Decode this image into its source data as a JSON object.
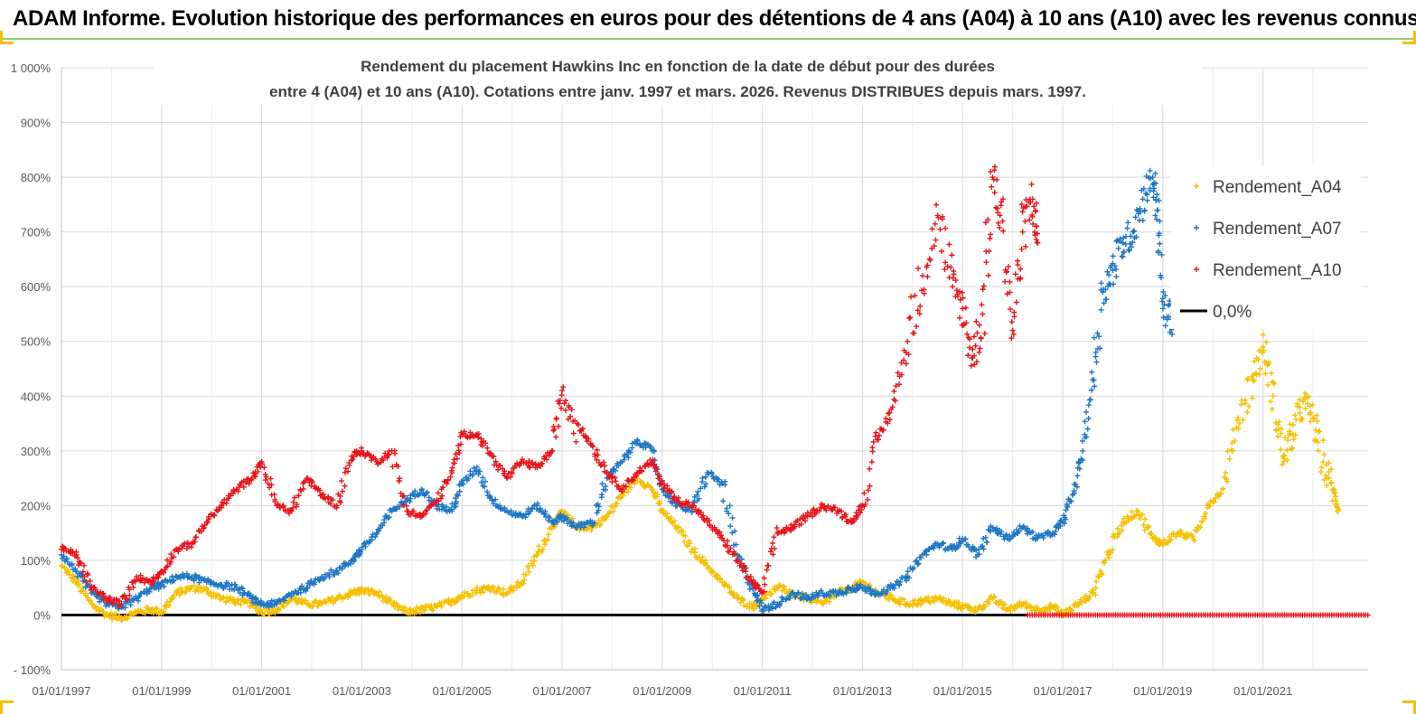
{
  "banner": {
    "title": "ADAM Informe. Evolution historique des performances en euros pour des détentions de 4 ans (A04) à 10 ans (A10) avec les revenus connus distribués"
  },
  "chart_data": {
    "type": "scatter",
    "title_line1": "Rendement du placement Hawkins Inc en fonction de la date de début pour des durées",
    "title_line2": "entre 4 (A04) et 10 ans (A10). Cotations entre janv. 1997 et mars. 2026. Revenus DISTRIBUES depuis mars. 1997.",
    "y_ticks": [
      "1 000%",
      "900%",
      "800%",
      "700%",
      "600%",
      "500%",
      "400%",
      "300%",
      "200%",
      "100%",
      "0%",
      "- 100%"
    ],
    "ylim": [
      -100,
      1000
    ],
    "x_ticks": [
      "01/01/1997",
      "01/01/1999",
      "01/01/2001",
      "01/01/2003",
      "01/01/2005",
      "01/01/2007",
      "01/01/2009",
      "01/01/2011",
      "01/01/2013",
      "01/01/2015",
      "01/01/2017",
      "01/01/2019",
      "01/01/2021"
    ],
    "xlim": [
      1997.0,
      2023.1
    ],
    "grid": true,
    "legend_position": "top-right",
    "colors": {
      "A04": "#f5c000",
      "A07": "#1f77c4",
      "A10": "#e8141b",
      "zero": "#000000"
    },
    "series": [
      {
        "name": "Rendement_A04",
        "key": "A04",
        "points": [
          [
            1997.0,
            90
          ],
          [
            1997.3,
            60
          ],
          [
            1997.6,
            20
          ],
          [
            1997.9,
            0
          ],
          [
            1998.2,
            -5
          ],
          [
            1998.5,
            5
          ],
          [
            1998.8,
            10
          ],
          [
            1999.0,
            5
          ],
          [
            1999.3,
            40
          ],
          [
            1999.6,
            50
          ],
          [
            1999.9,
            45
          ],
          [
            2000.2,
            30
          ],
          [
            2000.5,
            25
          ],
          [
            2000.8,
            20
          ],
          [
            2001.0,
            5
          ],
          [
            2001.3,
            10
          ],
          [
            2001.6,
            30
          ],
          [
            2001.9,
            20
          ],
          [
            2002.2,
            20
          ],
          [
            2002.5,
            30
          ],
          [
            2002.8,
            40
          ],
          [
            2003.0,
            45
          ],
          [
            2003.3,
            40
          ],
          [
            2003.6,
            20
          ],
          [
            2003.9,
            5
          ],
          [
            2004.2,
            10
          ],
          [
            2004.5,
            15
          ],
          [
            2004.8,
            25
          ],
          [
            2005.0,
            35
          ],
          [
            2005.3,
            45
          ],
          [
            2005.6,
            50
          ],
          [
            2005.9,
            40
          ],
          [
            2006.2,
            60
          ],
          [
            2006.5,
            110
          ],
          [
            2006.8,
            160
          ],
          [
            2007.0,
            190
          ],
          [
            2007.3,
            160
          ],
          [
            2007.6,
            160
          ],
          [
            2007.9,
            180
          ],
          [
            2008.2,
            220
          ],
          [
            2008.5,
            250
          ],
          [
            2008.8,
            230
          ],
          [
            2009.0,
            190
          ],
          [
            2009.3,
            160
          ],
          [
            2009.6,
            120
          ],
          [
            2009.9,
            90
          ],
          [
            2010.2,
            60
          ],
          [
            2010.5,
            30
          ],
          [
            2010.8,
            15
          ],
          [
            2011.0,
            30
          ],
          [
            2011.3,
            50
          ],
          [
            2011.6,
            40
          ],
          [
            2011.9,
            30
          ],
          [
            2012.2,
            20
          ],
          [
            2012.5,
            40
          ],
          [
            2012.8,
            50
          ],
          [
            2013.0,
            60
          ],
          [
            2013.3,
            40
          ],
          [
            2013.6,
            30
          ],
          [
            2013.9,
            20
          ],
          [
            2014.2,
            25
          ],
          [
            2014.5,
            30
          ],
          [
            2014.8,
            20
          ],
          [
            2015.0,
            15
          ],
          [
            2015.3,
            10
          ],
          [
            2015.6,
            30
          ],
          [
            2015.9,
            10
          ],
          [
            2016.2,
            20
          ],
          [
            2016.5,
            10
          ],
          [
            2016.8,
            15
          ],
          [
            2017.0,
            0
          ],
          [
            2017.3,
            20
          ],
          [
            2017.6,
            40
          ],
          [
            2017.9,
            110
          ],
          [
            2018.2,
            170
          ],
          [
            2018.5,
            190
          ],
          [
            2018.8,
            140
          ],
          [
            2019.0,
            130
          ],
          [
            2019.3,
            150
          ],
          [
            2019.6,
            140
          ],
          [
            2019.9,
            200
          ],
          [
            2020.2,
            230
          ],
          [
            2020.5,
            360
          ],
          [
            2020.8,
            430
          ],
          [
            2021.0,
            490
          ],
          [
            2021.2,
            400
          ],
          [
            2021.4,
            290
          ],
          [
            2021.6,
            330
          ],
          [
            2021.8,
            390
          ],
          [
            2022.0,
            360
          ],
          [
            2022.2,
            280
          ],
          [
            2022.4,
            230
          ],
          [
            2022.5,
            190
          ]
        ]
      },
      {
        "name": "Rendement_A07",
        "key": "A07",
        "points": [
          [
            1997.0,
            110
          ],
          [
            1997.3,
            80
          ],
          [
            1997.6,
            40
          ],
          [
            1997.9,
            20
          ],
          [
            1998.2,
            15
          ],
          [
            1998.5,
            30
          ],
          [
            1998.8,
            50
          ],
          [
            1999.0,
            55
          ],
          [
            1999.3,
            70
          ],
          [
            1999.6,
            70
          ],
          [
            1999.9,
            60
          ],
          [
            2000.2,
            55
          ],
          [
            2000.5,
            50
          ],
          [
            2000.8,
            30
          ],
          [
            2001.0,
            20
          ],
          [
            2001.3,
            20
          ],
          [
            2001.6,
            40
          ],
          [
            2001.9,
            50
          ],
          [
            2002.2,
            70
          ],
          [
            2002.5,
            80
          ],
          [
            2002.8,
            100
          ],
          [
            2003.0,
            120
          ],
          [
            2003.3,
            150
          ],
          [
            2003.6,
            190
          ],
          [
            2003.9,
            210
          ],
          [
            2004.2,
            230
          ],
          [
            2004.5,
            200
          ],
          [
            2004.8,
            190
          ],
          [
            2005.0,
            240
          ],
          [
            2005.3,
            270
          ],
          [
            2005.6,
            210
          ],
          [
            2005.9,
            190
          ],
          [
            2006.2,
            180
          ],
          [
            2006.5,
            200
          ],
          [
            2006.8,
            170
          ],
          [
            2007.0,
            180
          ],
          [
            2007.3,
            160
          ],
          [
            2007.6,
            170
          ],
          [
            2007.9,
            250
          ],
          [
            2008.2,
            280
          ],
          [
            2008.5,
            320
          ],
          [
            2008.8,
            300
          ],
          [
            2009.0,
            230
          ],
          [
            2009.3,
            200
          ],
          [
            2009.6,
            190
          ],
          [
            2009.9,
            260
          ],
          [
            2010.2,
            240
          ],
          [
            2010.5,
            110
          ],
          [
            2010.8,
            50
          ],
          [
            2011.0,
            10
          ],
          [
            2011.3,
            20
          ],
          [
            2011.6,
            40
          ],
          [
            2011.9,
            30
          ],
          [
            2012.2,
            40
          ],
          [
            2012.5,
            40
          ],
          [
            2012.8,
            50
          ],
          [
            2013.0,
            50
          ],
          [
            2013.3,
            40
          ],
          [
            2013.6,
            50
          ],
          [
            2013.9,
            70
          ],
          [
            2014.2,
            110
          ],
          [
            2014.5,
            130
          ],
          [
            2014.8,
            120
          ],
          [
            2015.0,
            140
          ],
          [
            2015.3,
            110
          ],
          [
            2015.6,
            160
          ],
          [
            2015.9,
            140
          ],
          [
            2016.2,
            160
          ],
          [
            2016.5,
            140
          ],
          [
            2016.8,
            150
          ],
          [
            2017.0,
            170
          ],
          [
            2017.2,
            220
          ],
          [
            2017.4,
            300
          ],
          [
            2017.6,
            430
          ],
          [
            2017.8,
            590
          ],
          [
            2018.0,
            630
          ],
          [
            2018.2,
            680
          ],
          [
            2018.4,
            700
          ],
          [
            2018.6,
            760
          ],
          [
            2018.8,
            800
          ],
          [
            2018.9,
            740
          ],
          [
            2019.0,
            560
          ],
          [
            2019.2,
            540
          ],
          [
            2019.3,
            590
          ]
        ]
      },
      {
        "name": "Rendement_A10",
        "key": "A10",
        "points": [
          [
            1997.0,
            120
          ],
          [
            1997.3,
            110
          ],
          [
            1997.6,
            50
          ],
          [
            1997.9,
            30
          ],
          [
            1998.2,
            20
          ],
          [
            1998.5,
            70
          ],
          [
            1998.8,
            60
          ],
          [
            1999.0,
            80
          ],
          [
            1999.3,
            120
          ],
          [
            1999.6,
            130
          ],
          [
            1999.9,
            170
          ],
          [
            2000.2,
            200
          ],
          [
            2000.5,
            230
          ],
          [
            2000.8,
            250
          ],
          [
            2001.0,
            280
          ],
          [
            2001.3,
            200
          ],
          [
            2001.6,
            190
          ],
          [
            2001.9,
            250
          ],
          [
            2002.2,
            220
          ],
          [
            2002.5,
            200
          ],
          [
            2002.8,
            290
          ],
          [
            2003.0,
            300
          ],
          [
            2003.3,
            280
          ],
          [
            2003.6,
            300
          ],
          [
            2003.9,
            190
          ],
          [
            2004.2,
            180
          ],
          [
            2004.5,
            210
          ],
          [
            2004.8,
            260
          ],
          [
            2005.0,
            330
          ],
          [
            2005.3,
            330
          ],
          [
            2005.6,
            290
          ],
          [
            2005.9,
            250
          ],
          [
            2006.2,
            280
          ],
          [
            2006.5,
            270
          ],
          [
            2006.8,
            300
          ],
          [
            2007.0,
            410
          ],
          [
            2007.3,
            350
          ],
          [
            2007.6,
            310
          ],
          [
            2007.9,
            260
          ],
          [
            2008.2,
            230
          ],
          [
            2008.5,
            260
          ],
          [
            2008.8,
            280
          ],
          [
            2009.0,
            240
          ],
          [
            2009.3,
            210
          ],
          [
            2009.6,
            200
          ],
          [
            2009.9,
            170
          ],
          [
            2010.2,
            140
          ],
          [
            2010.5,
            100
          ],
          [
            2010.8,
            60
          ],
          [
            2011.0,
            40
          ],
          [
            2011.3,
            150
          ],
          [
            2011.6,
            160
          ],
          [
            2011.9,
            180
          ],
          [
            2012.2,
            200
          ],
          [
            2012.5,
            190
          ],
          [
            2012.8,
            170
          ],
          [
            2013.0,
            200
          ],
          [
            2013.3,
            320
          ],
          [
            2013.6,
            380
          ],
          [
            2013.9,
            500
          ],
          [
            2014.2,
            620
          ],
          [
            2014.5,
            730
          ],
          [
            2014.8,
            600
          ],
          [
            2015.0,
            560
          ],
          [
            2015.2,
            470
          ],
          [
            2015.4,
            550
          ],
          [
            2015.6,
            800
          ],
          [
            2015.8,
            720
          ],
          [
            2016.0,
            520
          ],
          [
            2016.2,
            700
          ],
          [
            2016.4,
            760
          ],
          [
            2016.5,
            680
          ]
        ]
      },
      {
        "name": "0,0%",
        "key": "zero",
        "segments": [
          [
            1997.0,
            2016.3
          ]
        ]
      }
    ],
    "a10_flat_tail": [
      2016.3,
      2023.1
    ],
    "legend": [
      {
        "label": "Rendement_A04",
        "key": "A04"
      },
      {
        "label": "Rendement_A07",
        "key": "A07"
      },
      {
        "label": "Rendement_A10",
        "key": "A10"
      },
      {
        "label": "0,0%",
        "key": "zero"
      }
    ]
  }
}
